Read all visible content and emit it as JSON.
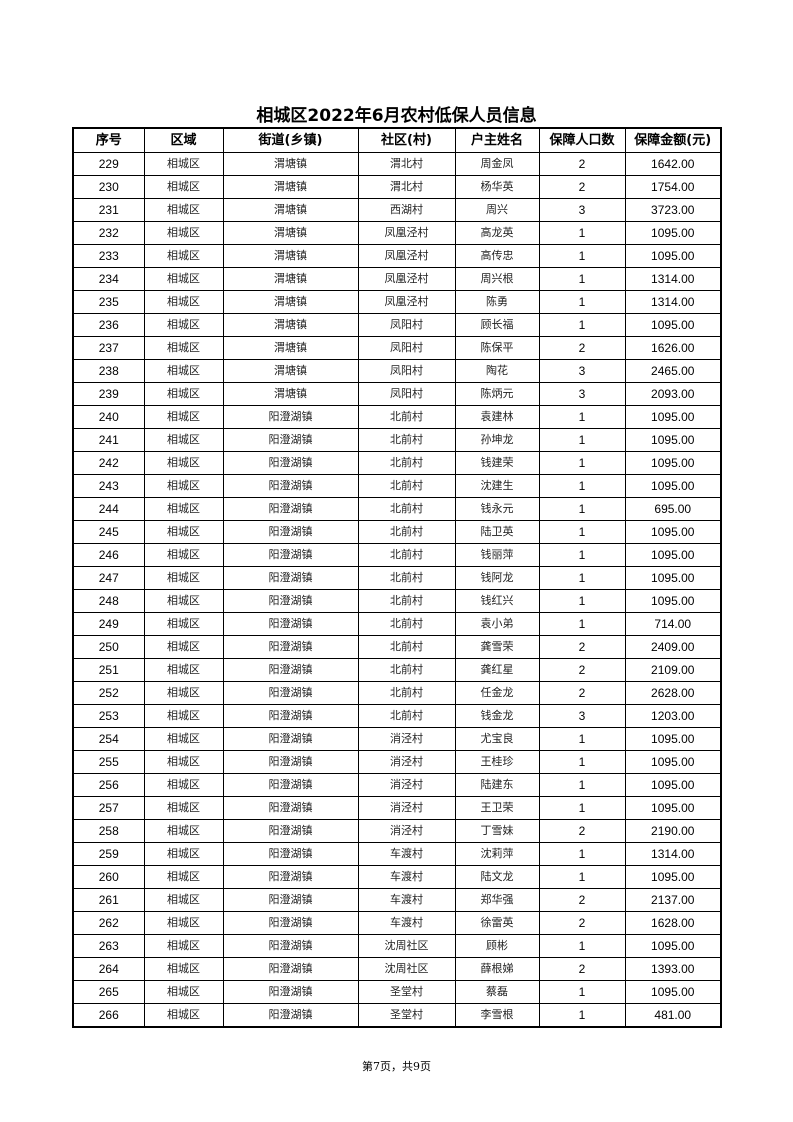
{
  "title": "相城区2022年6月农村低保人员信息",
  "headers": [
    "序号",
    "区域",
    "街道(乡镇)",
    "社区(村)",
    "户主姓名",
    "保障人口数",
    "保障金额(元)"
  ],
  "rows": [
    [
      "229",
      "相城区",
      "渭塘镇",
      "渭北村",
      "周金凤",
      "2",
      "1642.00"
    ],
    [
      "230",
      "相城区",
      "渭塘镇",
      "渭北村",
      "杨华英",
      "2",
      "1754.00"
    ],
    [
      "231",
      "相城区",
      "渭塘镇",
      "西湖村",
      "周兴",
      "3",
      "3723.00"
    ],
    [
      "232",
      "相城区",
      "渭塘镇",
      "凤凰泾村",
      "高龙英",
      "1",
      "1095.00"
    ],
    [
      "233",
      "相城区",
      "渭塘镇",
      "凤凰泾村",
      "高传忠",
      "1",
      "1095.00"
    ],
    [
      "234",
      "相城区",
      "渭塘镇",
      "凤凰泾村",
      "周兴根",
      "1",
      "1314.00"
    ],
    [
      "235",
      "相城区",
      "渭塘镇",
      "凤凰泾村",
      "陈勇",
      "1",
      "1314.00"
    ],
    [
      "236",
      "相城区",
      "渭塘镇",
      "凤阳村",
      "顾长福",
      "1",
      "1095.00"
    ],
    [
      "237",
      "相城区",
      "渭塘镇",
      "凤阳村",
      "陈保平",
      "2",
      "1626.00"
    ],
    [
      "238",
      "相城区",
      "渭塘镇",
      "凤阳村",
      "陶花",
      "3",
      "2465.00"
    ],
    [
      "239",
      "相城区",
      "渭塘镇",
      "凤阳村",
      "陈炳元",
      "3",
      "2093.00"
    ],
    [
      "240",
      "相城区",
      "阳澄湖镇",
      "北前村",
      "袁建林",
      "1",
      "1095.00"
    ],
    [
      "241",
      "相城区",
      "阳澄湖镇",
      "北前村",
      "孙坤龙",
      "1",
      "1095.00"
    ],
    [
      "242",
      "相城区",
      "阳澄湖镇",
      "北前村",
      "钱建荣",
      "1",
      "1095.00"
    ],
    [
      "243",
      "相城区",
      "阳澄湖镇",
      "北前村",
      "沈建生",
      "1",
      "1095.00"
    ],
    [
      "244",
      "相城区",
      "阳澄湖镇",
      "北前村",
      "钱永元",
      "1",
      "695.00"
    ],
    [
      "245",
      "相城区",
      "阳澄湖镇",
      "北前村",
      "陆卫英",
      "1",
      "1095.00"
    ],
    [
      "246",
      "相城区",
      "阳澄湖镇",
      "北前村",
      "钱丽萍",
      "1",
      "1095.00"
    ],
    [
      "247",
      "相城区",
      "阳澄湖镇",
      "北前村",
      "钱阿龙",
      "1",
      "1095.00"
    ],
    [
      "248",
      "相城区",
      "阳澄湖镇",
      "北前村",
      "钱红兴",
      "1",
      "1095.00"
    ],
    [
      "249",
      "相城区",
      "阳澄湖镇",
      "北前村",
      "袁小弟",
      "1",
      "714.00"
    ],
    [
      "250",
      "相城区",
      "阳澄湖镇",
      "北前村",
      "龚雪荣",
      "2",
      "2409.00"
    ],
    [
      "251",
      "相城区",
      "阳澄湖镇",
      "北前村",
      "龚红星",
      "2",
      "2109.00"
    ],
    [
      "252",
      "相城区",
      "阳澄湖镇",
      "北前村",
      "任金龙",
      "2",
      "2628.00"
    ],
    [
      "253",
      "相城区",
      "阳澄湖镇",
      "北前村",
      "钱金龙",
      "3",
      "1203.00"
    ],
    [
      "254",
      "相城区",
      "阳澄湖镇",
      "消泾村",
      "尤宝良",
      "1",
      "1095.00"
    ],
    [
      "255",
      "相城区",
      "阳澄湖镇",
      "消泾村",
      "王桂珍",
      "1",
      "1095.00"
    ],
    [
      "256",
      "相城区",
      "阳澄湖镇",
      "消泾村",
      "陆建东",
      "1",
      "1095.00"
    ],
    [
      "257",
      "相城区",
      "阳澄湖镇",
      "消泾村",
      "王卫荣",
      "1",
      "1095.00"
    ],
    [
      "258",
      "相城区",
      "阳澄湖镇",
      "消泾村",
      "丁雪妹",
      "2",
      "2190.00"
    ],
    [
      "259",
      "相城区",
      "阳澄湖镇",
      "车渡村",
      "沈莉萍",
      "1",
      "1314.00"
    ],
    [
      "260",
      "相城区",
      "阳澄湖镇",
      "车渡村",
      "陆文龙",
      "1",
      "1095.00"
    ],
    [
      "261",
      "相城区",
      "阳澄湖镇",
      "车渡村",
      "郑华强",
      "2",
      "2137.00"
    ],
    [
      "262",
      "相城区",
      "阳澄湖镇",
      "车渡村",
      "徐雷英",
      "2",
      "1628.00"
    ],
    [
      "263",
      "相城区",
      "阳澄湖镇",
      "沈周社区",
      "顾彬",
      "1",
      "1095.00"
    ],
    [
      "264",
      "相城区",
      "阳澄湖镇",
      "沈周社区",
      "薛根娣",
      "2",
      "1393.00"
    ],
    [
      "265",
      "相城区",
      "阳澄湖镇",
      "圣堂村",
      "蔡磊",
      "1",
      "1095.00"
    ],
    [
      "266",
      "相城区",
      "阳澄湖镇",
      "圣堂村",
      "李雪根",
      "1",
      "481.00"
    ]
  ],
  "footer": "第7页，共9页"
}
